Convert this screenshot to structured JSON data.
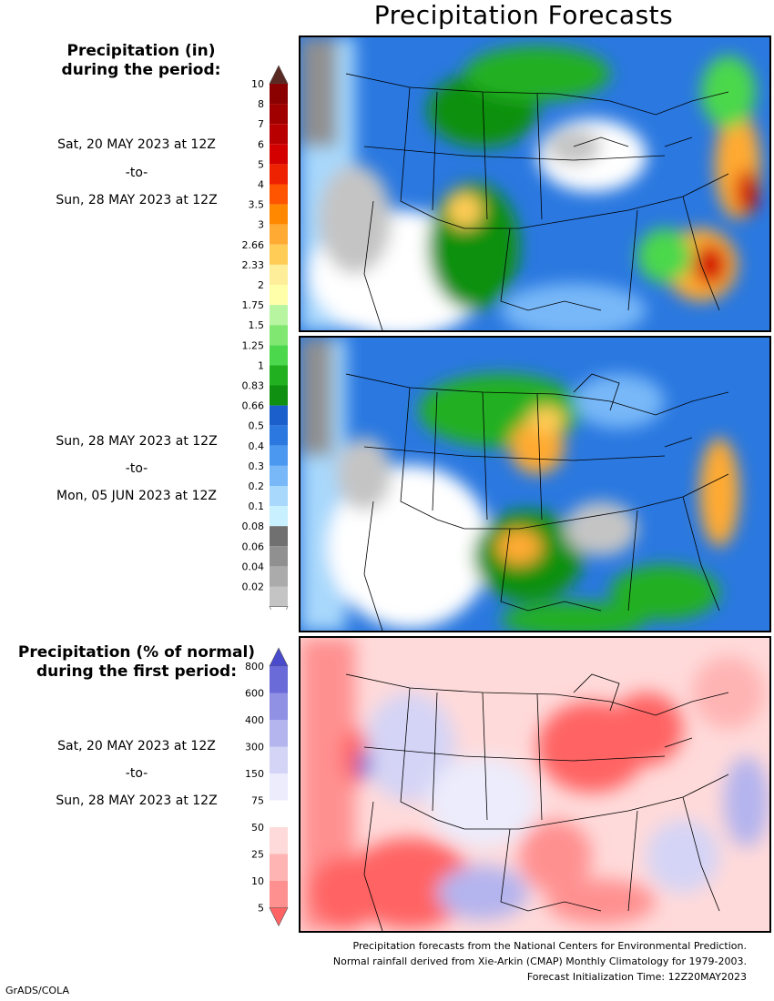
{
  "title": "Precipitation Forecasts",
  "amount_header": [
    "Precipitation (in)",
    "during the period:"
  ],
  "normal_header": [
    "Precipitation (% of normal)",
    "during the first period:"
  ],
  "periods": [
    {
      "start": "Sat, 20 MAY 2023 at 12Z",
      "sep": "-to-",
      "end": "Sun, 28 MAY 2023 at 12Z"
    },
    {
      "start": "Sun, 28 MAY 2023 at 12Z",
      "sep": "-to-",
      "end": "Mon, 05 JUN 2023 at 12Z"
    },
    {
      "start": "Sat, 20 MAY 2023 at 12Z",
      "sep": "-to-",
      "end": "Sun, 28 MAY 2023 at 12Z"
    }
  ],
  "amount_colorbar": {
    "labels": [
      "10",
      "8",
      "7",
      "6",
      "5",
      "4",
      "3.5",
      "3",
      "2.66",
      "2.33",
      "2",
      "1.75",
      "1.5",
      "1.25",
      "1",
      "0.83",
      "0.66",
      "0.5",
      "0.4",
      "0.3",
      "0.2",
      "0.1",
      "0.08",
      "0.06",
      "0.04",
      "0.02"
    ],
    "colors": [
      "#5a2a22",
      "#8b0000",
      "#a00000",
      "#b80000",
      "#d40000",
      "#ee2200",
      "#ff5500",
      "#ff8800",
      "#ffaa33",
      "#ffcc55",
      "#ffee99",
      "#ffffaa",
      "#b8f5a0",
      "#80e870",
      "#4cd84c",
      "#20b020",
      "#109010",
      "#1a5fcc",
      "#2a78e0",
      "#4a98f0",
      "#78b8f8",
      "#a8d8fc",
      "#c8f0ff",
      "#707070",
      "#909090",
      "#ababab",
      "#c4c4c4",
      "#ffffff"
    ]
  },
  "normal_colorbar": {
    "labels": [
      "800",
      "600",
      "400",
      "300",
      "150",
      "75",
      "50",
      "25",
      "10",
      "5"
    ],
    "colors": [
      "#4a4acc",
      "#6a6ad8",
      "#9090e4",
      "#b4b4ee",
      "#d4d4f6",
      "#ececfc",
      "#ffffff",
      "#ffdada",
      "#ffb4b4",
      "#ff9090",
      "#ff6464"
    ]
  },
  "footer": [
    "Precipitation forecasts from the National Centers for Environmental Prediction.",
    "Normal rainfall derived from Xie-Arkin (CMAP) Monthly Climatology for 1979-2003.",
    "Forecast Initialization Time: 12Z20MAY2023"
  ],
  "credit": "GrADS/COLA"
}
